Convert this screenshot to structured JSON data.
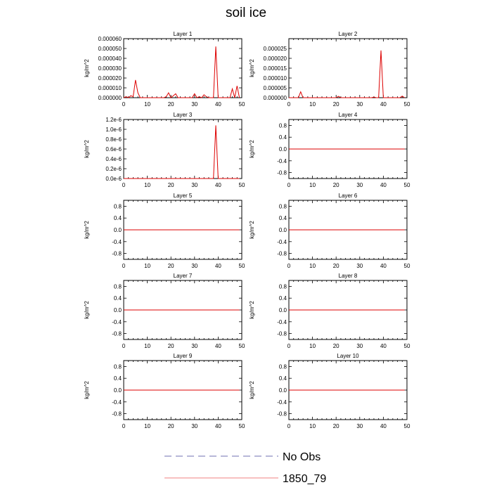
{
  "title": "soil ice",
  "legend": {
    "entries": [
      {
        "label": "No Obs",
        "style": "dashed",
        "color": "#6f6fb0"
      },
      {
        "label": "1850_79",
        "style": "solid",
        "color": "#f08080"
      }
    ]
  },
  "colors": {
    "series": "#dd0000",
    "axis": "#000000"
  },
  "chart_data": [
    {
      "type": "line",
      "title": "Layer 1",
      "ylabel": "kg/m^2",
      "xlim": [
        0,
        50
      ],
      "xticks": [
        0,
        10,
        20,
        30,
        40,
        50
      ],
      "ylim": [
        0,
        6e-05
      ],
      "yticks": [
        0,
        1e-05,
        2e-05,
        3e-05,
        4e-05,
        5e-05,
        6e-05
      ],
      "yticklabels": [
        "0.000000",
        "0.000010",
        "0.000020",
        "0.000030",
        "0.000040",
        "0.000050",
        "0.000060"
      ],
      "series": [
        {
          "x": [
            0,
            1,
            2,
            3,
            4,
            5,
            6,
            7,
            8,
            9,
            10,
            11,
            12,
            13,
            14,
            15,
            16,
            17,
            18,
            19,
            20,
            21,
            22,
            23,
            24,
            25,
            26,
            27,
            28,
            29,
            30,
            31,
            32,
            33,
            34,
            35,
            36,
            37,
            38,
            39,
            40,
            41,
            42,
            43,
            44,
            45,
            46,
            47,
            48,
            49
          ],
          "y": [
            0,
            1e-06,
            0,
            2e-06,
            1e-06,
            1.8e-05,
            5e-06,
            0,
            0,
            0,
            0,
            0,
            0,
            0,
            0,
            0,
            0,
            0,
            1e-06,
            5e-06,
            0,
            2e-06,
            4e-06,
            0,
            0,
            0,
            0,
            0,
            0,
            0,
            4e-06,
            0,
            1e-06,
            0,
            3e-06,
            1e-06,
            0,
            0,
            0,
            5.2e-05,
            0,
            0,
            0,
            0,
            0,
            0,
            9e-06,
            0,
            1.2e-05,
            0
          ]
        }
      ]
    },
    {
      "type": "line",
      "title": "Layer 2",
      "ylabel": "kg/m^2",
      "xlim": [
        0,
        50
      ],
      "xticks": [
        0,
        10,
        20,
        30,
        40,
        50
      ],
      "ylim": [
        0,
        3e-05
      ],
      "yticks": [
        0,
        5e-06,
        1e-05,
        1.5e-05,
        2e-05,
        2.5e-05
      ],
      "yticklabels": [
        "0.000000",
        "0.000005",
        "0.000010",
        "0.000015",
        "0.000020",
        "0.000025"
      ],
      "series": [
        {
          "x": [
            0,
            1,
            2,
            3,
            4,
            5,
            6,
            7,
            8,
            9,
            10,
            11,
            12,
            13,
            14,
            15,
            16,
            17,
            18,
            19,
            20,
            21,
            22,
            23,
            24,
            25,
            26,
            27,
            28,
            29,
            30,
            31,
            32,
            33,
            34,
            35,
            36,
            37,
            38,
            39,
            40,
            41,
            42,
            43,
            44,
            45,
            46,
            47,
            48,
            49
          ],
          "y": [
            0,
            0,
            0,
            0,
            0,
            3e-06,
            0,
            0,
            0,
            0,
            0,
            0,
            0,
            0,
            0,
            0,
            0,
            0,
            0,
            0,
            0,
            7e-07,
            0,
            0,
            0,
            0,
            0,
            0,
            0,
            0,
            0,
            0,
            0,
            0,
            0,
            0,
            3e-07,
            0,
            0,
            2.4e-05,
            0,
            0,
            0,
            0,
            0,
            0,
            0,
            0,
            8e-07,
            0
          ]
        }
      ]
    },
    {
      "type": "line",
      "title": "Layer 3",
      "ylabel": "kg/m^2",
      "xlim": [
        0,
        50
      ],
      "xticks": [
        0,
        10,
        20,
        30,
        40,
        50
      ],
      "ylim": [
        0,
        1.2e-06
      ],
      "yticks": [
        0,
        2e-07,
        4e-07,
        6e-07,
        8e-07,
        1e-06,
        1.2e-06
      ],
      "yticklabels": [
        "0.0e-6",
        "0.2e-6",
        "0.4e-6",
        "0.6e-6",
        "0.8e-6",
        "1.0e-6",
        "1.2e-6"
      ],
      "series": [
        {
          "x": [
            0,
            1,
            2,
            3,
            4,
            5,
            6,
            7,
            8,
            9,
            10,
            11,
            12,
            13,
            14,
            15,
            16,
            17,
            18,
            19,
            20,
            21,
            22,
            23,
            24,
            25,
            26,
            27,
            28,
            29,
            30,
            31,
            32,
            33,
            34,
            35,
            36,
            37,
            38,
            39,
            40,
            41,
            42,
            43,
            44,
            45,
            46,
            47,
            48,
            49
          ],
          "y": [
            0,
            0,
            0,
            0,
            0,
            0,
            0,
            0,
            0,
            0,
            0,
            0,
            0,
            0,
            0,
            0,
            0,
            0,
            0,
            0,
            0,
            0,
            0,
            0,
            0,
            0,
            0,
            0,
            0,
            0,
            0,
            0,
            0,
            0,
            0,
            0,
            0,
            0,
            0,
            1.08e-06,
            0,
            0,
            0,
            0,
            0,
            0,
            0,
            0,
            0,
            0
          ]
        }
      ]
    },
    {
      "type": "line",
      "title": "Layer 4",
      "ylabel": "kg/m^2",
      "xlim": [
        0,
        50
      ],
      "xticks": [
        0,
        10,
        20,
        30,
        40,
        50
      ],
      "ylim": [
        -1,
        1
      ],
      "yticks": [
        -0.8,
        -0.4,
        0,
        0.4,
        0.8
      ],
      "yticklabels": [
        "-0.8",
        "-0.4",
        "0.0",
        "0.4",
        "0.8"
      ],
      "series": [
        {
          "x": [
            0,
            49
          ],
          "y": [
            0,
            0
          ]
        }
      ]
    },
    {
      "type": "line",
      "title": "Layer 5",
      "ylabel": "kg/m^2",
      "xlim": [
        0,
        50
      ],
      "xticks": [
        0,
        10,
        20,
        30,
        40,
        50
      ],
      "ylim": [
        -1,
        1
      ],
      "yticks": [
        -0.8,
        -0.4,
        0,
        0.4,
        0.8
      ],
      "yticklabels": [
        "-0.8",
        "-0.4",
        "0.0",
        "0.4",
        "0.8"
      ],
      "series": [
        {
          "x": [
            0,
            49
          ],
          "y": [
            0,
            0
          ]
        }
      ]
    },
    {
      "type": "line",
      "title": "Layer 6",
      "ylabel": "kg/m^2",
      "xlim": [
        0,
        50
      ],
      "xticks": [
        0,
        10,
        20,
        30,
        40,
        50
      ],
      "ylim": [
        -1,
        1
      ],
      "yticks": [
        -0.8,
        -0.4,
        0,
        0.4,
        0.8
      ],
      "yticklabels": [
        "-0.8",
        "-0.4",
        "0.0",
        "0.4",
        "0.8"
      ],
      "series": [
        {
          "x": [
            0,
            49
          ],
          "y": [
            0,
            0
          ]
        }
      ]
    },
    {
      "type": "line",
      "title": "Layer 7",
      "ylabel": "kg/m^2",
      "xlim": [
        0,
        50
      ],
      "xticks": [
        0,
        10,
        20,
        30,
        40,
        50
      ],
      "ylim": [
        -1,
        1
      ],
      "yticks": [
        -0.8,
        -0.4,
        0,
        0.4,
        0.8
      ],
      "yticklabels": [
        "-0.8",
        "-0.4",
        "0.0",
        "0.4",
        "0.8"
      ],
      "series": [
        {
          "x": [
            0,
            49
          ],
          "y": [
            0,
            0
          ]
        }
      ]
    },
    {
      "type": "line",
      "title": "Layer 8",
      "ylabel": "kg/m^2",
      "xlim": [
        0,
        50
      ],
      "xticks": [
        0,
        10,
        20,
        30,
        40,
        50
      ],
      "ylim": [
        -1,
        1
      ],
      "yticks": [
        -0.8,
        -0.4,
        0,
        0.4,
        0.8
      ],
      "yticklabels": [
        "-0.8",
        "-0.4",
        "0.0",
        "0.4",
        "0.8"
      ],
      "series": [
        {
          "x": [
            0,
            49
          ],
          "y": [
            0,
            0
          ]
        }
      ]
    },
    {
      "type": "line",
      "title": "Layer 9",
      "ylabel": "kg/m^2",
      "xlim": [
        0,
        50
      ],
      "xticks": [
        0,
        10,
        20,
        30,
        40,
        50
      ],
      "ylim": [
        -1,
        1
      ],
      "yticks": [
        -0.8,
        -0.4,
        0,
        0.4,
        0.8
      ],
      "yticklabels": [
        "-0.8",
        "-0.4",
        "0.0",
        "0.4",
        "0.8"
      ],
      "series": [
        {
          "x": [
            0,
            49
          ],
          "y": [
            0,
            0
          ]
        }
      ]
    },
    {
      "type": "line",
      "title": "Layer 10",
      "ylabel": "kg/m^2",
      "xlim": [
        0,
        50
      ],
      "xticks": [
        0,
        10,
        20,
        30,
        40,
        50
      ],
      "ylim": [
        -1,
        1
      ],
      "yticks": [
        -0.8,
        -0.4,
        0,
        0.4,
        0.8
      ],
      "yticklabels": [
        "-0.8",
        "-0.4",
        "0.0",
        "0.4",
        "0.8"
      ],
      "series": [
        {
          "x": [
            0,
            49
          ],
          "y": [
            0,
            0
          ]
        }
      ]
    }
  ]
}
